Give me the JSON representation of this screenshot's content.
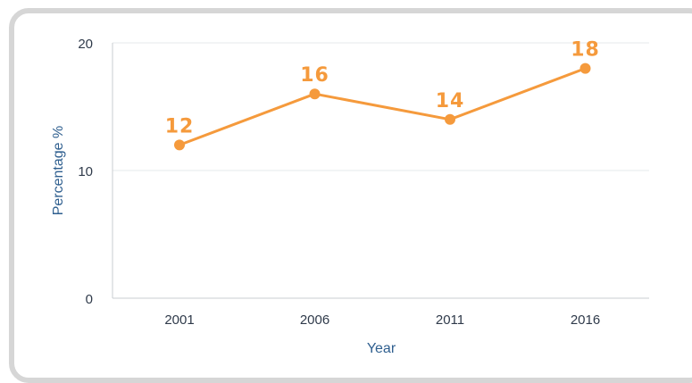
{
  "chart_data": {
    "type": "line",
    "categories": [
      "2001",
      "2006",
      "2011",
      "2016"
    ],
    "series": [
      {
        "values": [
          12,
          16,
          14,
          18
        ],
        "color": "#f59a3c"
      }
    ],
    "data_labels": [
      "12",
      "16",
      "14",
      "18"
    ],
    "xlabel": "Year",
    "ylabel": "Percentage %",
    "ylim": [
      0,
      20
    ],
    "yticks": [
      "0",
      "10",
      "20"
    ],
    "grid": true,
    "legend": "none"
  }
}
